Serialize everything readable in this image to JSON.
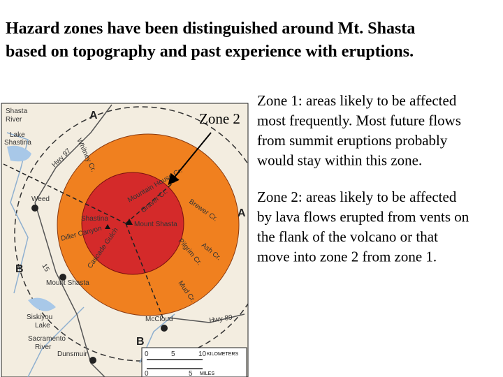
{
  "title": {
    "lines": [
      "Hazard zones have been distinguished around Mt. Shasta",
      "based on topography and past experience with eruptions."
    ]
  },
  "callout": "Zone 2",
  "zones": [
    {
      "name": "Zone 1",
      "lines": [
        ": areas likely to be affected",
        "most frequently. Most future flows",
        "from summit eruptions probably",
        "would stay within this zone."
      ]
    },
    {
      "name": "Zone 2",
      "lines": [
        ": areas likely to be affected",
        "by lava flows erupted from vents on",
        "the flank of the volcano or that",
        "move into zone 2 from zone 1."
      ]
    }
  ],
  "map": {
    "labels": [
      "Shasta",
      "River",
      "Lake",
      "Shastina",
      "Hwy 97",
      "Whitney Cr.",
      "Mountain House Cr.",
      "Graver Cr.",
      "Brewer Cr.",
      "Weed",
      "Shastina",
      "Mount Shasta",
      "Diller Canyon",
      "Cascade Gulch",
      "Ash Cr.",
      "Pilgrim Cr.",
      "Mount Shasta",
      "Mud Cr.",
      "Siskiyou",
      "Lake",
      "McCloud",
      "Hwy 89",
      "Sacramento",
      "River",
      "Dunsmuir",
      "15"
    ],
    "section_marks": [
      "A",
      "A",
      "B",
      "B"
    ],
    "scale": {
      "km": [
        "0",
        "5",
        "10"
      ],
      "km_unit": "KILOMETERS",
      "mi": [
        "0",
        "5"
      ],
      "mi_unit": "MILES"
    }
  }
}
